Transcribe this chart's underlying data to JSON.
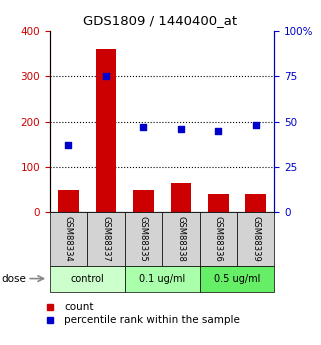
{
  "title": "GDS1809 / 1440400_at",
  "samples": [
    "GSM88334",
    "GSM88337",
    "GSM88335",
    "GSM88338",
    "GSM88336",
    "GSM88339"
  ],
  "counts": [
    50,
    360,
    50,
    65,
    40,
    40
  ],
  "percentiles": [
    37,
    75,
    47,
    46,
    45,
    48
  ],
  "groups": [
    {
      "label": "control",
      "indices": [
        0,
        1
      ],
      "color": "#ccffcc"
    },
    {
      "label": "0.1 ug/ml",
      "indices": [
        2,
        3
      ],
      "color": "#aaffaa"
    },
    {
      "label": "0.5 ug/ml",
      "indices": [
        4,
        5
      ],
      "color": "#66ee66"
    }
  ],
  "bar_color": "#cc0000",
  "dot_color": "#0000cc",
  "left_yaxis": {
    "min": 0,
    "max": 400,
    "ticks": [
      0,
      100,
      200,
      300,
      400
    ],
    "color": "#cc0000"
  },
  "right_yaxis": {
    "min": 0,
    "max": 100,
    "ticks": [
      0,
      25,
      50,
      75,
      100
    ],
    "color": "#0000cc"
  },
  "grid_values": [
    100,
    200,
    300
  ],
  "sample_box_color": "#d3d3d3",
  "legend_count": "count",
  "legend_percentile": "percentile rank within the sample",
  "background_color": "#ffffff"
}
